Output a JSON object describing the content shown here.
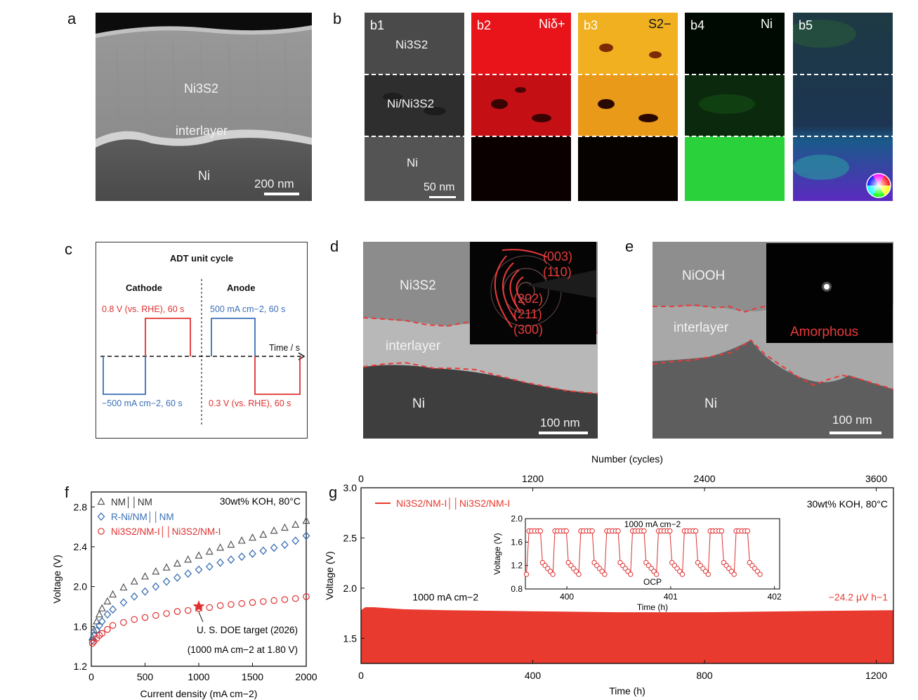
{
  "panel_labels": {
    "a": "a",
    "b": "b",
    "c": "c",
    "d": "d",
    "e": "e",
    "f": "f",
    "g": "g"
  },
  "panel_a": {
    "top_layer": "Ni3S2",
    "interlayer": "interlayer",
    "substrate": "Ni",
    "scale": "200 nm"
  },
  "panel_b": {
    "maps": [
      {
        "id": "b1",
        "element": ""
      },
      {
        "id": "b2",
        "element": "Niδ+"
      },
      {
        "id": "b3",
        "element": "S2−"
      },
      {
        "id": "b4",
        "element": "Ni"
      },
      {
        "id": "b5",
        "element": ""
      }
    ],
    "layers": [
      "Ni3S2",
      "Ni/Ni3S2",
      "Ni"
    ],
    "scale": "50 nm"
  },
  "panel_c": {
    "title": "ADT unit cycle",
    "cathode": "Cathode",
    "anode": "Anode",
    "cathode_high": "0.8 V (vs. RHE), 60 s",
    "cathode_low": "−500 mA cm−2, 60 s",
    "anode_high": "500 mA cm−2, 60 s",
    "anode_low": "0.3 V (vs. RHE), 60 s",
    "time_axis": "Time / s",
    "colors": {
      "red": "#e03030",
      "blue": "#3a6fb5"
    }
  },
  "panel_d": {
    "top_layer": "Ni3S2",
    "interlayer": "interlayer",
    "substrate": "Ni",
    "scale": "100 nm",
    "saed_indices": [
      "(003)",
      "(110)",
      "(202)",
      "(211)",
      "(300)"
    ]
  },
  "panel_e": {
    "top_layer": "NiOOH",
    "interlayer": "interlayer",
    "substrate": "Ni",
    "scale": "100 nm",
    "saed_label": "Amorphous"
  },
  "chart_data": [
    {
      "type": "scatter",
      "panel": "f",
      "xlabel": "Current density (mA cm−2)",
      "ylabel": "Voltage (V)",
      "xlim": [
        0,
        2000
      ],
      "ylim": [
        1.2,
        2.95
      ],
      "xticks": [
        0,
        500,
        1000,
        1500,
        2000
      ],
      "yticks": [
        1.2,
        1.6,
        2.0,
        2.4,
        2.8
      ],
      "condition": "30wt% KOH, 80°C",
      "annotation": {
        "line1": "U. S. DOE target (2026)",
        "line2": "(1000 mA cm−2 at 1.80 V)",
        "x": 1000,
        "y": 1.8
      },
      "series": [
        {
          "name": "NM││NM",
          "color": "#555555",
          "marker": "triangle",
          "x": [
            10,
            25,
            50,
            75,
            100,
            150,
            200,
            300,
            400,
            500,
            600,
            700,
            800,
            900,
            1000,
            1100,
            1200,
            1300,
            1400,
            1500,
            1600,
            1700,
            1800,
            1900,
            2000
          ],
          "y": [
            1.49,
            1.56,
            1.65,
            1.72,
            1.78,
            1.85,
            1.92,
            1.99,
            2.05,
            2.1,
            2.15,
            2.19,
            2.23,
            2.27,
            2.31,
            2.35,
            2.39,
            2.42,
            2.46,
            2.49,
            2.52,
            2.56,
            2.59,
            2.62,
            2.66
          ]
        },
        {
          "name": "R-Ni/NM││NM",
          "color": "#3a6fb5",
          "marker": "diamond",
          "x": [
            10,
            25,
            50,
            75,
            100,
            150,
            200,
            300,
            400,
            500,
            600,
            700,
            800,
            900,
            1000,
            1100,
            1200,
            1300,
            1400,
            1500,
            1600,
            1700,
            1800,
            1900,
            2000
          ],
          "y": [
            1.46,
            1.51,
            1.56,
            1.61,
            1.65,
            1.72,
            1.77,
            1.84,
            1.9,
            1.95,
            2.0,
            2.05,
            2.09,
            2.13,
            2.17,
            2.2,
            2.24,
            2.27,
            2.3,
            2.33,
            2.36,
            2.39,
            2.42,
            2.46,
            2.51
          ]
        },
        {
          "name": "Ni3S2/NM-I││Ni3S2/NM-I",
          "color": "#e03030",
          "marker": "circle",
          "x": [
            10,
            25,
            50,
            75,
            100,
            150,
            200,
            300,
            400,
            500,
            600,
            700,
            800,
            900,
            1000,
            1100,
            1200,
            1300,
            1400,
            1500,
            1600,
            1700,
            1800,
            1900,
            2000
          ],
          "y": [
            1.43,
            1.45,
            1.48,
            1.51,
            1.53,
            1.57,
            1.61,
            1.64,
            1.67,
            1.69,
            1.71,
            1.73,
            1.75,
            1.76,
            1.78,
            1.79,
            1.81,
            1.82,
            1.83,
            1.84,
            1.85,
            1.86,
            1.87,
            1.88,
            1.9
          ]
        }
      ]
    },
    {
      "type": "area",
      "panel": "g",
      "xlabel": "Time (h)",
      "x2label": "Number (cycles)",
      "ylabel": "Voltage (V)",
      "xlim": [
        0,
        1240
      ],
      "x2lim": [
        0,
        3720
      ],
      "ylim": [
        1.25,
        3.0
      ],
      "xticks": [
        0,
        400,
        800,
        1200
      ],
      "x2ticks": [
        0,
        1200,
        2400,
        3600
      ],
      "yticks": [
        1.5,
        2.0,
        2.5,
        3.0
      ],
      "ytick_labels": [
        "1.5",
        "2.0",
        "2.5",
        "3.0"
      ],
      "condition": "30wt% KOH, 80°C",
      "legend": "Ni3S2/NM-I││Ni3S2/NM-I",
      "current_label": "1000 mA cm−2",
      "decay_label": "−24.2 μV h−1",
      "color": "#e83a2e",
      "band": {
        "low": 1.25,
        "x": [
          0,
          10,
          30,
          100,
          200,
          400,
          600,
          800,
          1000,
          1240
        ],
        "y_high": [
          1.78,
          1.81,
          1.81,
          1.79,
          1.78,
          1.77,
          1.76,
          1.76,
          1.77,
          1.78
        ]
      },
      "inset": {
        "title": "1000 mA cm−2",
        "ocp_label": "OCP",
        "xlabel": "Time (h)",
        "ylabel": "Voltage (V)",
        "xlim": [
          399.6,
          402.05
        ],
        "ylim": [
          0.8,
          2.0
        ],
        "xticks": [
          400,
          401,
          402
        ],
        "yticks": [
          0.8,
          1.2,
          1.6,
          2.0
        ],
        "cycle_start": 399.63,
        "cycle_period": 0.2495,
        "cycles": 9,
        "high_v": 1.79,
        "low_v": [
          1.25,
          1.2,
          1.15,
          1.1,
          1.05
        ]
      }
    }
  ]
}
